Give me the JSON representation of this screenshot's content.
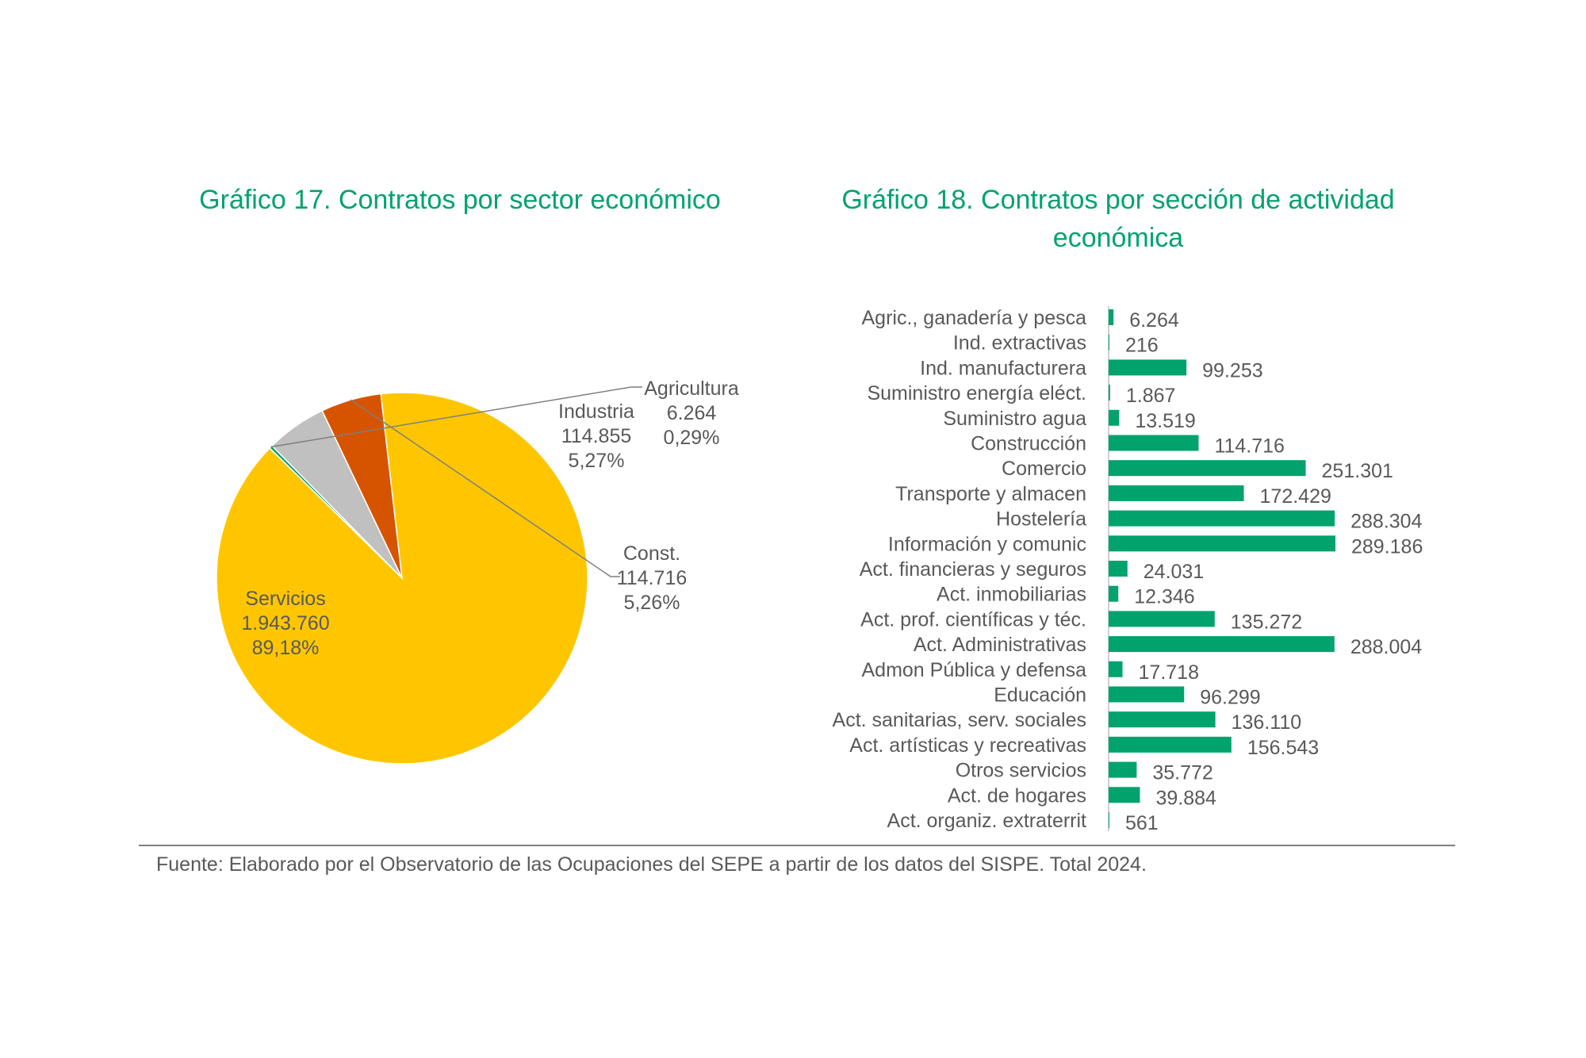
{
  "chart_data": [
    {
      "type": "pie",
      "title": "Gráfico 17. Contratos por sector económico",
      "slices": [
        {
          "name": "Servicios",
          "value": 1943760,
          "value_label": "1.943.760",
          "percent_label": "89,18%",
          "color": "#ffc600"
        },
        {
          "name": "Agricultura",
          "value": 6264,
          "value_label": "6.264",
          "percent_label": "0,29%",
          "color": "#00a36c"
        },
        {
          "name": "Industria",
          "value": 114855,
          "value_label": "114.855",
          "percent_label": "5,27%",
          "color": "#c0c0c0"
        },
        {
          "name": "Const.",
          "value": 114716,
          "value_label": "114.716",
          "percent_label": "5,26%",
          "color": "#d65400"
        }
      ]
    },
    {
      "type": "bar",
      "orientation": "horizontal",
      "title": "Gráfico 18. Contratos por sección de actividad económica",
      "bar_color": "#00a36c",
      "categories": [
        "Agric., ganadería y pesca",
        "Ind. extractivas",
        "Ind. manufacturera",
        "Suministro energía eléct.",
        "Suministro agua",
        "Construcción",
        "Comercio",
        "Transporte y almacen",
        "Hostelería",
        "Información y comunic",
        "Act. financieras y seguros",
        "Act. inmobiliarias",
        "Act. prof. científicas y téc.",
        "Act. Administrativas",
        "Admon Pública y defensa",
        "Educación",
        "Act. sanitarias, serv. sociales",
        "Act. artísticas y recreativas",
        "Otros servicios",
        "Act. de hogares",
        "Act. organiz. extraterrit"
      ],
      "values": [
        6264,
        216,
        99253,
        1867,
        13519,
        114716,
        251301,
        172429,
        288304,
        289186,
        24031,
        12346,
        135272,
        288004,
        17718,
        96299,
        136110,
        156543,
        35772,
        39884,
        561
      ],
      "value_labels": [
        "6.264",
        "216",
        "99.253",
        "1.867",
        "13.519",
        "114.716",
        "251.301",
        "172.429",
        "288.304",
        "289.186",
        "24.031",
        "12.346",
        "135.272",
        "288.004",
        "17.718",
        "96.299",
        "136.110",
        "156.543",
        "35.772",
        "39.884",
        "561"
      ]
    }
  ],
  "source": "Fuente: Elaborado por el Observatorio de las Ocupaciones del SEPE a partir de los datos del SISPE. Total 2024."
}
